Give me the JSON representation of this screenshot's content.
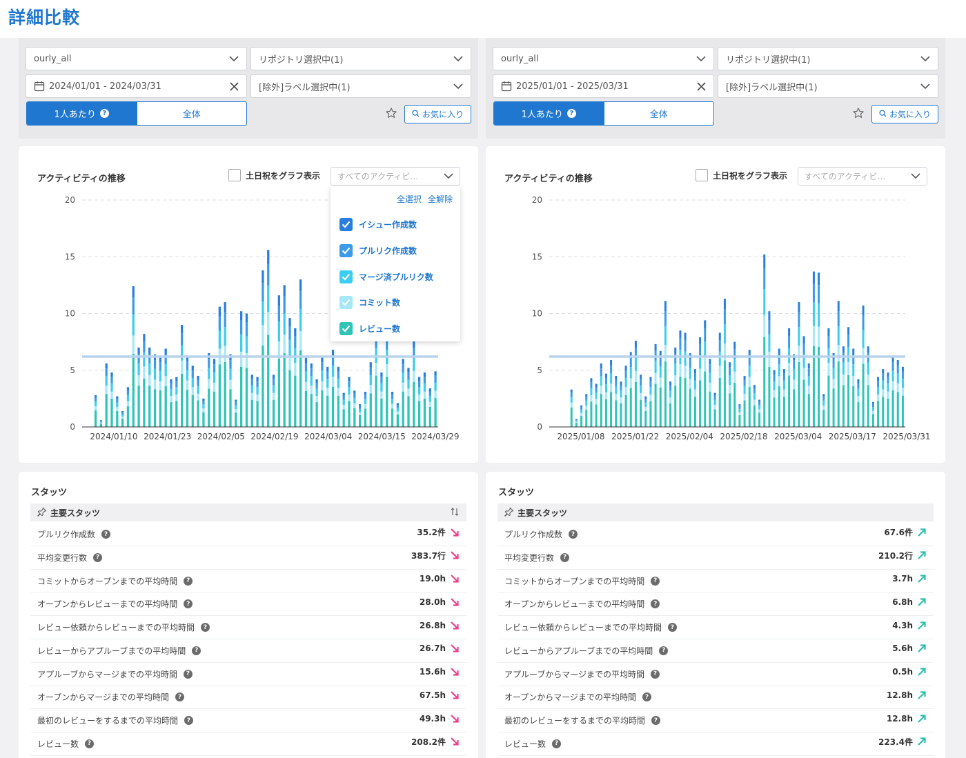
{
  "page_title": "詳細比較",
  "panels": [
    {
      "filters": {
        "team": "ourly_all",
        "repositories": "リポジトリ選択中(1)",
        "date_range": "2024/01/01 - 2024/03/31",
        "exclude_labels": "[除外]ラベル選択中(1)",
        "toggle_per_person": "1人あたり",
        "toggle_total": "全体",
        "favorite_label": "お気に入り"
      },
      "chart": {
        "title": "アクティビティの推移",
        "holiday_label": "土日祝をグラフ表示",
        "activity_select_placeholder": "すべてのアクティビ…",
        "dropdown_open": true,
        "dropdown": {
          "select_all": "全選択",
          "clear_all": "全解除",
          "items": [
            {
              "label": "イシュー作成数",
              "color": "#2a7fde"
            },
            {
              "label": "プルリク作成数",
              "color": "#3c9be8"
            },
            {
              "label": "マージ済プルリク数",
              "color": "#3ccdf0"
            },
            {
              "label": "コミット数",
              "color": "#a6e8f6"
            },
            {
              "label": "レビュー数",
              "color": "#2ec4b6"
            }
          ]
        }
      },
      "chart_data": {
        "type": "bar",
        "stacked": true,
        "x_tick_labels": [
          "2024/01/10",
          "2024/01/23",
          "2024/02/05",
          "2024/02/19",
          "2024/03/04",
          "2024/03/15",
          "2024/03/29"
        ],
        "y_ticks": [
          0,
          5,
          10,
          15,
          20
        ],
        "ylim": [
          0,
          20
        ],
        "average_line": 6.2,
        "grid": true,
        "totals": [
          0,
          0,
          2.8,
          0.6,
          5.6,
          4.8,
          2.7,
          1.4,
          3.5,
          12.4,
          7,
          8.2,
          7,
          6.4,
          6.2,
          6.9,
          4.2,
          4.4,
          9,
          6.3,
          5.4,
          4.5,
          2.5,
          6.5,
          6,
          10.6,
          11,
          6.4,
          2.4,
          10.2,
          10,
          4.6,
          4.4,
          13.8,
          15.6,
          4.6,
          11.6,
          12.5,
          9.6,
          8.7,
          13,
          6.1,
          5.6,
          4.2,
          6.2,
          5.3,
          6.8,
          5.3,
          3,
          4.4,
          3.2,
          2,
          3.1,
          5.7,
          8.7,
          4.8,
          8.5,
          3.1,
          2.1,
          6,
          5.2,
          7.6,
          4.4,
          4.8,
          3.4,
          4.9
        ],
        "series": [
          {
            "name": "イシュー作成数",
            "share": 0.08
          },
          {
            "name": "プルリク作成数",
            "share": 0.12
          },
          {
            "name": "マージ済プルリク数",
            "share": 0.15
          },
          {
            "name": "コミット数",
            "share": 0.13
          },
          {
            "name": "レビュー数",
            "share": 0.52
          }
        ]
      },
      "stats": {
        "title": "スタッツ",
        "section_title": "主要スタッツ",
        "rows": [
          {
            "label": "プルリク作成数",
            "value": "35.2件",
            "trend": "down"
          },
          {
            "label": "平均変更行数",
            "value": "383.7行",
            "trend": "down"
          },
          {
            "label": "コミットからオープンまでの平均時間",
            "value": "19.0h",
            "trend": "down"
          },
          {
            "label": "オープンからレビューまでの平均時間",
            "value": "28.0h",
            "trend": "down"
          },
          {
            "label": "レビュー依頼からレビューまでの平均時間",
            "value": "26.8h",
            "trend": "down"
          },
          {
            "label": "レビューからアプルーブまでの平均時間",
            "value": "26.7h",
            "trend": "down"
          },
          {
            "label": "アプルーブからマージまでの平均時間",
            "value": "15.6h",
            "trend": "down"
          },
          {
            "label": "オープンからマージまでの平均時間",
            "value": "67.5h",
            "trend": "down"
          },
          {
            "label": "最初のレビューをするまでの平均時間",
            "value": "49.3h",
            "trend": "down"
          },
          {
            "label": "レビュー数",
            "value": "208.2件",
            "trend": "down"
          }
        ]
      }
    },
    {
      "filters": {
        "team": "ourly_all",
        "repositories": "リポジトリ選択中(1)",
        "date_range": "2025/01/01 - 2025/03/31",
        "exclude_labels": "[除外]ラベル選択中(1)",
        "toggle_per_person": "1人あたり",
        "toggle_total": "全体",
        "favorite_label": "お気に入り"
      },
      "chart": {
        "title": "アクティビティの推移",
        "holiday_label": "土日祝をグラフ表示",
        "activity_select_placeholder": "すべてのアクティビ…",
        "dropdown_open": false
      },
      "chart_data": {
        "type": "bar",
        "stacked": true,
        "x_tick_labels": [
          "2025/01/08",
          "2025/01/22",
          "2025/02/04",
          "2025/02/18",
          "2025/03/04",
          "2025/03/17",
          "2025/03/31"
        ],
        "y_ticks": [
          0,
          5,
          10,
          15,
          20
        ],
        "ylim": [
          0,
          20
        ],
        "average_line": 6.2,
        "grid": true,
        "totals": [
          0,
          0,
          0,
          0,
          3.3,
          0.7,
          1.9,
          2.9,
          4.3,
          3.8,
          5.6,
          4.7,
          5.9,
          4.5,
          4,
          5.4,
          6.6,
          7.6,
          4.6,
          2.7,
          4.4,
          7.3,
          6.7,
          11.1,
          4,
          7,
          8.5,
          8.3,
          6.5,
          5.1,
          7.9,
          9.4,
          6,
          3,
          8.3,
          11.3,
          5.7,
          7.5,
          2,
          4.5,
          6.8,
          3.7,
          2.4,
          15.2,
          10.2,
          5,
          6.9,
          5.1,
          8.7,
          6.4,
          11,
          8,
          5.6,
          13.7,
          13.6,
          2.9,
          8.7,
          6.5,
          11.1,
          7.1,
          8.8,
          6.9,
          4.2,
          10.7,
          7.1,
          2.2,
          4.4,
          5.1,
          4.8,
          6.2,
          5.9,
          5.3
        ]
      },
      "stats": {
        "title": "スタッツ",
        "section_title": "主要スタッツ",
        "rows": [
          {
            "label": "プルリク作成数",
            "value": "67.6件",
            "trend": "up"
          },
          {
            "label": "平均変更行数",
            "value": "210.2行",
            "trend": "up"
          },
          {
            "label": "コミットからオープンまでの平均時間",
            "value": "3.7h",
            "trend": "up"
          },
          {
            "label": "オープンからレビューまでの平均時間",
            "value": "6.8h",
            "trend": "up"
          },
          {
            "label": "レビュー依頼からレビューまでの平均時間",
            "value": "4.3h",
            "trend": "up"
          },
          {
            "label": "レビューからアプルーブまでの平均時間",
            "value": "5.6h",
            "trend": "up"
          },
          {
            "label": "アプルーブからマージまでの平均時間",
            "value": "0.5h",
            "trend": "up"
          },
          {
            "label": "オープンからマージまでの平均時間",
            "value": "12.8h",
            "trend": "up"
          },
          {
            "label": "最初のレビューをするまでの平均時間",
            "value": "12.8h",
            "trend": "up"
          },
          {
            "label": "レビュー数",
            "value": "223.4件",
            "trend": "up"
          }
        ]
      }
    }
  ],
  "colors": {
    "accent": "#1f77d0",
    "trend_down": "#ee3f8a",
    "trend_up": "#2bbfae",
    "average_line": "#b8d3ec"
  }
}
